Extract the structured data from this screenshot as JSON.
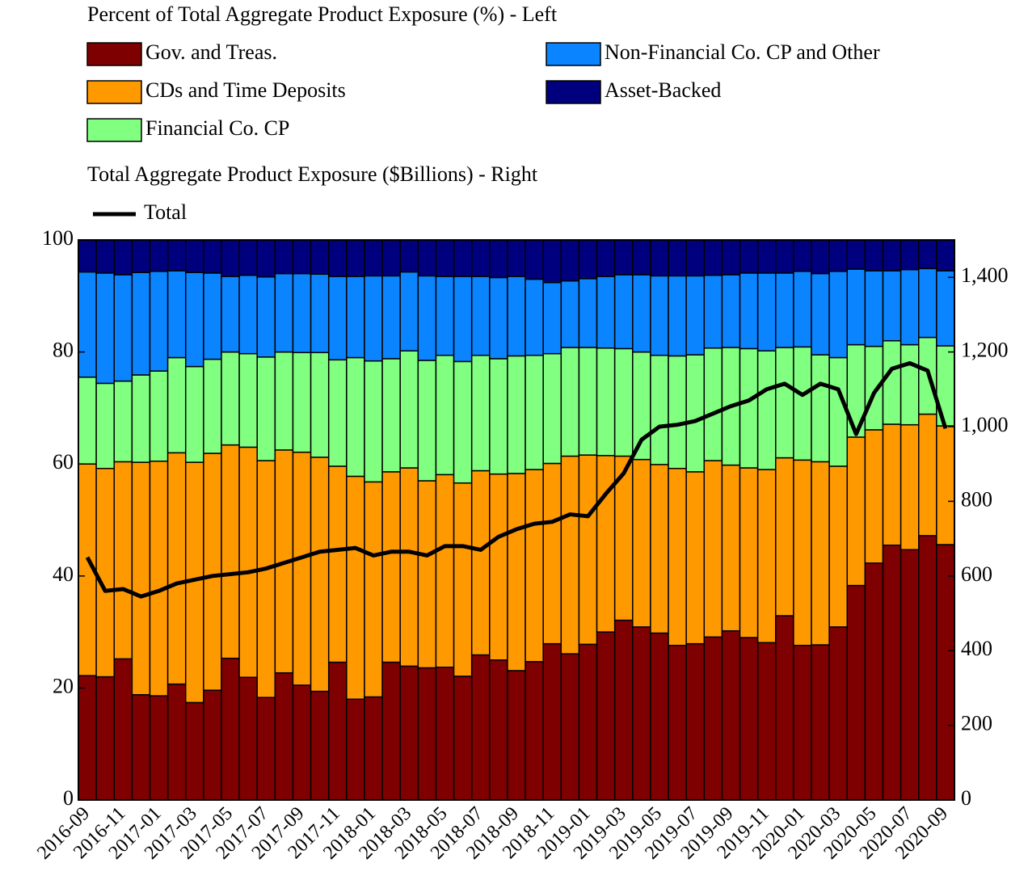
{
  "chart_data": {
    "type": "bar",
    "stacked": true,
    "legend_titles": [
      "Percent of Total Aggregate Product Exposure (%) - Left",
      "Total Aggregate Product Exposure ($Billions) - Right"
    ],
    "categories": [
      "2016-09",
      null,
      "2016-11",
      null,
      "2017-01",
      null,
      "2017-03",
      null,
      "2017-05",
      null,
      "2017-07",
      null,
      "2017-09",
      null,
      "2017-11",
      null,
      "2018-01",
      null,
      "2018-03",
      null,
      "2018-05",
      null,
      "2018-07",
      null,
      "2018-09",
      null,
      "2018-11",
      null,
      "2019-01",
      null,
      "2019-03",
      null,
      "2019-05",
      null,
      "2019-07",
      null,
      "2019-09",
      null,
      "2019-11",
      null,
      "2020-01",
      null,
      "2020-03",
      null,
      "2020-05",
      null,
      "2020-07",
      null,
      "2020-09"
    ],
    "series": [
      {
        "name": "Gov. and Treas.",
        "color": "#7f0000",
        "values": [
          22.2,
          22.0,
          25.2,
          18.8,
          18.6,
          20.7,
          17.4,
          19.6,
          25.3,
          21.9,
          18.3,
          22.7,
          20.5,
          19.4,
          24.6,
          18.0,
          18.4,
          24.6,
          23.9,
          23.6,
          23.7,
          22.1,
          25.9,
          25.0,
          23.1,
          24.7,
          27.9,
          26.1,
          27.8,
          30.0,
          32.1,
          30.9,
          29.8,
          27.6,
          27.9,
          29.1,
          30.2,
          29.0,
          28.1,
          32.9,
          27.6,
          27.7,
          30.9,
          38.3,
          42.3,
          45.5,
          44.7,
          47.2,
          45.6
        ]
      },
      {
        "name": "CDs and Time Deposits",
        "color": "#ff9900",
        "values": [
          37.8,
          37.2,
          35.2,
          41.5,
          41.9,
          41.3,
          42.9,
          42.3,
          38.1,
          41.1,
          42.3,
          39.8,
          41.6,
          41.8,
          35.0,
          39.8,
          38.4,
          34.0,
          35.4,
          33.4,
          34.4,
          34.5,
          32.9,
          33.2,
          35.2,
          34.3,
          32.2,
          35.3,
          33.8,
          31.5,
          29.3,
          29.9,
          30.1,
          31.6,
          30.7,
          31.5,
          29.6,
          30.3,
          30.9,
          28.2,
          33.1,
          32.7,
          28.7,
          26.5,
          23.8,
          21.6,
          22.3,
          21.7,
          21.2
        ]
      },
      {
        "name": "Financial Co. CP",
        "color": "#80ff80",
        "values": [
          15.5,
          15.2,
          14.4,
          15.6,
          16.1,
          17.0,
          17.1,
          16.8,
          16.6,
          16.7,
          18.5,
          17.5,
          17.8,
          18.7,
          19.0,
          21.2,
          21.6,
          20.2,
          20.9,
          21.5,
          21.3,
          21.7,
          20.6,
          20.6,
          21.0,
          20.4,
          19.6,
          19.4,
          19.2,
          19.2,
          19.2,
          19.2,
          19.5,
          20.1,
          20.9,
          20.1,
          21.0,
          21.3,
          21.2,
          19.7,
          20.2,
          19.1,
          19.4,
          16.5,
          14.9,
          14.9,
          14.3,
          13.7,
          14.3
        ]
      },
      {
        "name": "Non-Financial Co. CP and Other",
        "color": "#0a84ff",
        "values": [
          18.8,
          19.7,
          19.0,
          18.3,
          17.8,
          15.5,
          16.8,
          15.4,
          13.5,
          14.0,
          14.3,
          14.0,
          14.1,
          14.0,
          14.9,
          14.5,
          15.2,
          14.8,
          14.1,
          15.1,
          14.1,
          15.2,
          14.1,
          14.5,
          14.2,
          13.6,
          12.7,
          11.9,
          12.3,
          12.8,
          13.2,
          13.8,
          14.2,
          14.3,
          14.1,
          13.0,
          13.0,
          13.5,
          13.9,
          13.3,
          13.5,
          14.5,
          15.4,
          13.5,
          13.5,
          12.5,
          13.4,
          12.3,
          13.4
        ]
      },
      {
        "name": "Asset-Backed",
        "color": "#00007f",
        "values": [
          5.7,
          5.9,
          6.2,
          5.8,
          5.6,
          5.5,
          5.8,
          5.9,
          6.5,
          6.3,
          6.6,
          6.0,
          6.0,
          6.1,
          6.5,
          6.5,
          6.4,
          6.4,
          5.7,
          6.4,
          6.5,
          6.5,
          6.5,
          6.7,
          6.5,
          7.0,
          7.6,
          7.3,
          6.9,
          6.5,
          6.2,
          6.2,
          6.4,
          6.4,
          6.4,
          6.3,
          6.2,
          5.9,
          5.9,
          5.9,
          5.6,
          6.0,
          5.6,
          5.2,
          5.5,
          5.5,
          5.3,
          5.1,
          5.5
        ]
      },
      {
        "name": "Total",
        "type": "line",
        "axis": "y2",
        "color": "#000000",
        "values": [
          650,
          560,
          565,
          545,
          560,
          580,
          590,
          600,
          605,
          610,
          620,
          635,
          650,
          665,
          670,
          675,
          655,
          665,
          665,
          655,
          680,
          680,
          670,
          705,
          725,
          740,
          745,
          765,
          760,
          820,
          875,
          965,
          1000,
          1005,
          1015,
          1035,
          1055,
          1070,
          1100,
          1115,
          1085,
          1115,
          1100,
          980,
          1090,
          1155,
          1170,
          1150,
          995
        ]
      }
    ],
    "ylim": [
      0,
      100
    ],
    "yticks": [
      0,
      20,
      40,
      60,
      80,
      100
    ],
    "y2lim": [
      0,
      1500
    ],
    "y2ticks": [
      0,
      200,
      400,
      600,
      800,
      {
        "value": 1000,
        "label": "1,000"
      },
      {
        "value": 1200,
        "label": "1,200"
      },
      {
        "value": 1400,
        "label": "1,400"
      }
    ]
  }
}
